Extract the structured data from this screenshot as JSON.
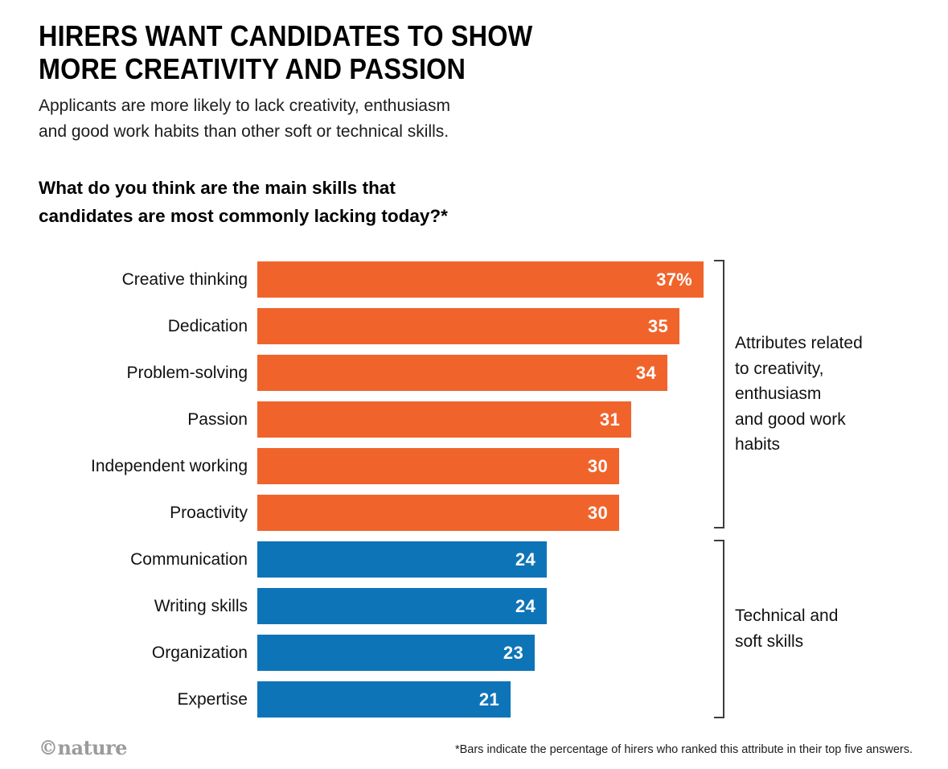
{
  "header": {
    "title": "HIRERS WANT CANDIDATES TO SHOW\nMORE CREATIVITY AND PASSION",
    "subtitle": "Applicants are more likely to lack creativity, enthusiasm\nand good work habits than other soft or technical skills.",
    "question": "What do you think are the main skills that\ncandidates are most commonly lacking today?*"
  },
  "chart_data": {
    "type": "bar",
    "orientation": "horizontal",
    "title": "What do you think are the main skills that candidates are most commonly lacking today?*",
    "categories": [
      "Creative thinking",
      "Dedication",
      "Problem-solving",
      "Passion",
      "Independent working",
      "Proactivity",
      "Communication",
      "Writing skills",
      "Organization",
      "Expertise"
    ],
    "values": [
      37,
      35,
      34,
      31,
      30,
      30,
      24,
      24,
      23,
      21
    ],
    "value_labels": [
      "37%",
      "35",
      "34",
      "31",
      "30",
      "30",
      "24",
      "24",
      "23",
      "21"
    ],
    "xlim": [
      0,
      40
    ],
    "grid": false,
    "legend_position": "right-brackets",
    "groups": [
      {
        "name": "creativity",
        "label": "Attributes related\nto creativity,\nenthusiasm\nand good work\nhabits",
        "rows": [
          0,
          5
        ],
        "color": "#F0642C"
      },
      {
        "name": "technical",
        "label": "Technical and\nsoft skills",
        "rows": [
          6,
          9
        ],
        "color": "#0E74B8"
      }
    ]
  },
  "footer": {
    "footnote": "*Bars indicate the percentage of hirers who ranked this attribute in their top five answers.",
    "credit": "©nature"
  }
}
